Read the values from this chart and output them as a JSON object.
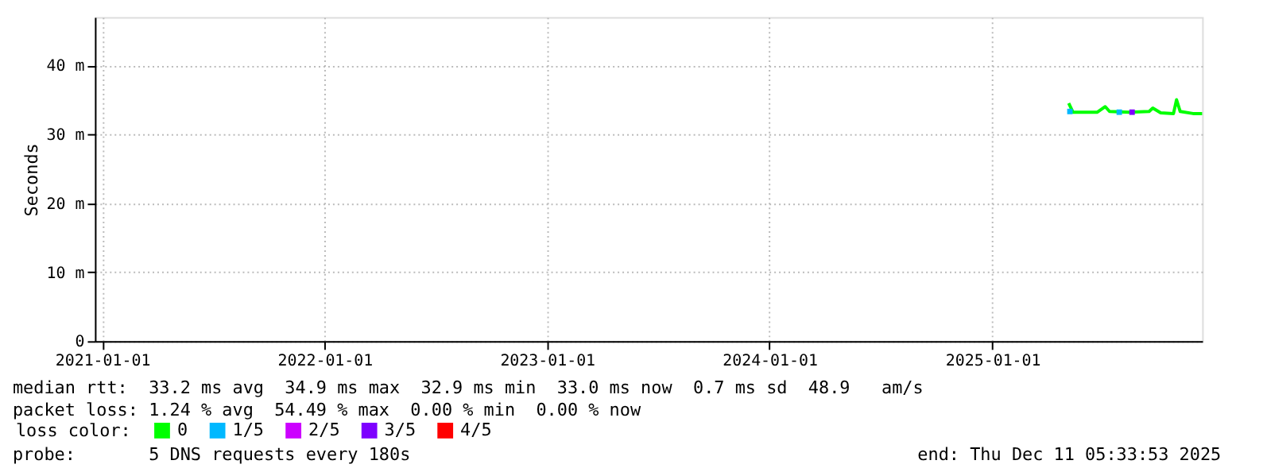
{
  "chart_data": {
    "type": "line",
    "ylabel": "Seconds",
    "legend_title": "loss color:",
    "legend": "bottom",
    "grid": true,
    "marker": "none",
    "line_style": "solid",
    "xlim": [
      "2020-12-20",
      "2025-12-11"
    ],
    "xticks": [
      "2021-01-01",
      "2022-01-01",
      "2023-01-01",
      "2024-01-01",
      "2025-01-01"
    ],
    "ylim": [
      0,
      47
    ],
    "yticks": [
      0,
      {
        "value": 10,
        "label": "10 m"
      },
      {
        "value": 20,
        "label": "20 m"
      },
      {
        "value": 30,
        "label": "30 m"
      },
      {
        "value": 40,
        "label": "40 m"
      }
    ],
    "series": [
      {
        "name": "0",
        "color": "#00ff00",
        "x": [
          "2025-05-06",
          "2025-05-13",
          "2025-06-22",
          "2025-07-05",
          "2025-07-12",
          "2025-08-13",
          "2025-09-15",
          "2025-09-21",
          "2025-10-04",
          "2025-10-25",
          "2025-10-30",
          "2025-11-05",
          "2025-11-26",
          "2025-12-11"
        ],
        "values": [
          34.5,
          33.2,
          33.2,
          34.0,
          33.3,
          33.2,
          33.3,
          33.8,
          33.1,
          33.0,
          35.0,
          33.3,
          33.0,
          33.0
        ]
      },
      {
        "name": "1/5",
        "color": "#00b8ff",
        "type": "scatter",
        "marker": "square",
        "x": [
          "2025-05-08",
          "2025-07-28"
        ],
        "values": [
          33.3,
          33.2
        ]
      },
      {
        "name": "2/5",
        "color": "#cc00ff",
        "type": "scatter",
        "marker": "square"
      },
      {
        "name": "3/5",
        "color": "#7e00ff",
        "type": "scatter",
        "marker": "square",
        "x": [
          "2025-08-18"
        ],
        "values": [
          33.2
        ]
      },
      {
        "name": "4/5",
        "color": "#ff0000",
        "type": "scatter",
        "marker": "square"
      }
    ],
    "annotations": [
      "median rtt:  33.2 ms avg  34.9 ms max  32.9 ms min  33.0 ms now  0.7 ms sd  48.9   am/s",
      "packet loss: 1.24 % avg  54.49 % max  0.00 % min  0.00 % now",
      "probe:       5 DNS requests every 180s",
      "end: Thu Dec 11 05:33:53 2025"
    ]
  }
}
